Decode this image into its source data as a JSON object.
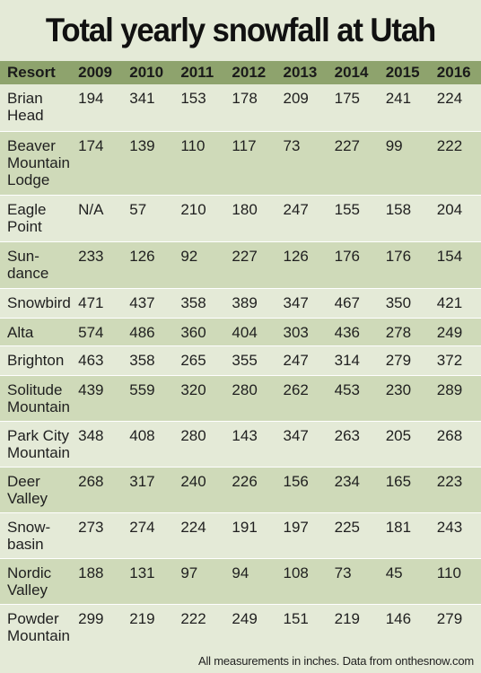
{
  "chart_data": {
    "type": "table",
    "title": "Total yearly snowfall at Utah resorts",
    "columns": [
      "Resort",
      "2009",
      "2010",
      "2011",
      "2012",
      "2013",
      "2014",
      "2015",
      "2016"
    ],
    "rows": [
      {
        "resort": "Brian\nHead",
        "values": [
          "194",
          "341",
          "153",
          "178",
          "209",
          "175",
          "241",
          "224"
        ]
      },
      {
        "resort": "Beaver\nMountain\nLodge",
        "values": [
          "174",
          "139",
          "110",
          "117",
          "73",
          "227",
          "99",
          "222"
        ]
      },
      {
        "resort": "Eagle\nPoint",
        "values": [
          "N/A",
          "57",
          "210",
          "180",
          "247",
          "155",
          "158",
          "204"
        ]
      },
      {
        "resort": "Sun-\ndance",
        "values": [
          "233",
          "126",
          "92",
          "227",
          "126",
          "176",
          "176",
          "154"
        ]
      },
      {
        "resort": "Snowbird",
        "values": [
          "471",
          "437",
          "358",
          "389",
          "347",
          "467",
          "350",
          "421"
        ]
      },
      {
        "resort": "Alta",
        "values": [
          "574",
          "486",
          "360",
          "404",
          "303",
          "436",
          "278",
          "249"
        ]
      },
      {
        "resort": "Brighton",
        "values": [
          "463",
          "358",
          "265",
          "355",
          "247",
          "314",
          "279",
          "372"
        ]
      },
      {
        "resort": "Solitude\nMountain",
        "values": [
          "439",
          "559",
          "320",
          "280",
          "262",
          "453",
          "230",
          "289"
        ]
      },
      {
        "resort": "Park City\nMountain",
        "values": [
          "348",
          "408",
          "280",
          "143",
          "347",
          "263",
          "205",
          "268"
        ]
      },
      {
        "resort": "Deer\nValley",
        "values": [
          "268",
          "317",
          "240",
          "226",
          "156",
          "234",
          "165",
          "223"
        ]
      },
      {
        "resort": "Snow-\nbasin",
        "values": [
          "273",
          "274",
          "224",
          "191",
          "197",
          "225",
          "181",
          "243"
        ]
      },
      {
        "resort": "Nordic\nValley",
        "values": [
          "188",
          "131",
          "97",
          "94",
          "108",
          "73",
          "45",
          "110"
        ]
      },
      {
        "resort": "Powder\nMountain",
        "values": [
          "299",
          "219",
          "222",
          "249",
          "151",
          "219",
          "146",
          "279"
        ]
      }
    ],
    "footnote": "All measurements in inches. Data from onthesnow.com",
    "colors": {
      "header_bg": "#8ea36d",
      "row_even": "#e4ead7",
      "row_odd": "#cfdab9",
      "divider": "#ffffff"
    }
  }
}
